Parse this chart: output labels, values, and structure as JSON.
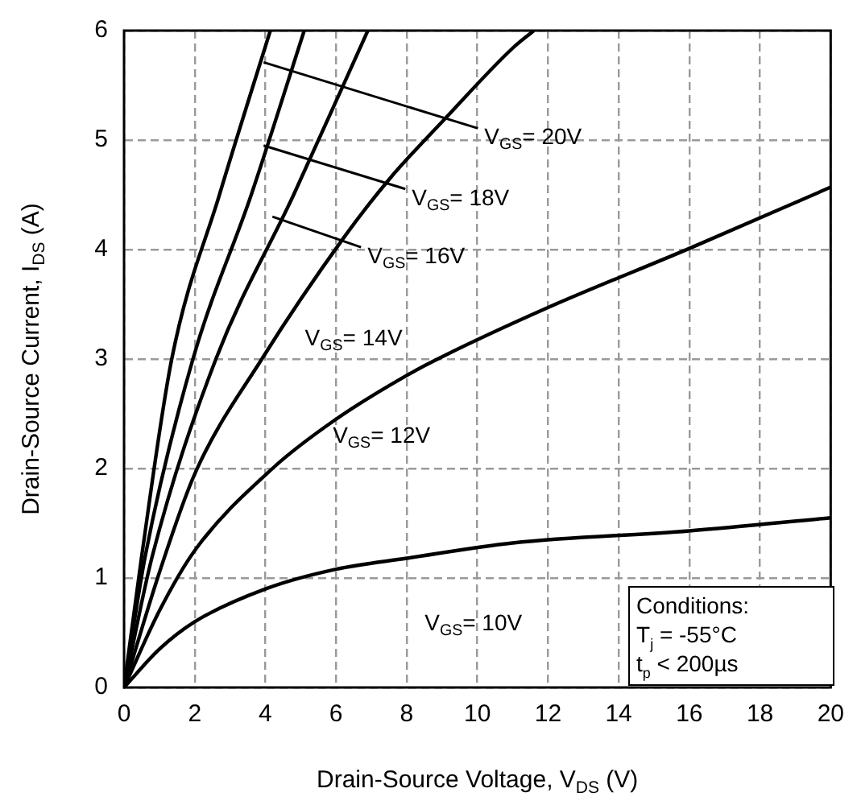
{
  "chart_data": {
    "type": "line",
    "xlabel": "Drain-Source Voltage, V$_{DS}$ (V)",
    "ylabel": "Drain-Source Current, I$_{DS}$ (A)",
    "xlim": [
      0,
      20
    ],
    "xticks": [
      0,
      2,
      4,
      6,
      8,
      10,
      12,
      14,
      16,
      18,
      20
    ],
    "ylim": [
      0,
      6
    ],
    "yticks": [
      0,
      1,
      2,
      3,
      4,
      5,
      6
    ],
    "grid": true,
    "legend": false,
    "marker": "none",
    "line_style": "solid",
    "series": [
      {
        "color": "#000000",
        "x": [
          0,
          0.5,
          1.35,
          2.7,
          4.14
        ],
        "values": [
          0,
          1.2,
          3,
          4.5,
          6
        ]
      },
      {
        "color": "#000000",
        "x": [
          0,
          0.6,
          1.95,
          3.6,
          5.1
        ],
        "values": [
          0,
          1.2,
          3,
          4.5,
          6
        ]
      },
      {
        "color": "#000000",
        "x": [
          0,
          0.8,
          2.6,
          4.8,
          6.9
        ],
        "values": [
          0,
          1.2,
          3,
          4.5,
          6
        ]
      },
      {
        "color": "#000000",
        "x": [
          0,
          1,
          2,
          3.9,
          6.2,
          7.5,
          9.1,
          11,
          11.6
        ],
        "values": [
          0,
          1.05,
          1.95,
          3,
          4.1,
          4.64,
          5.2,
          5.84,
          6
        ]
      },
      {
        "color": "#000000",
        "x": [
          0,
          1,
          2,
          4.2,
          6,
          8,
          9,
          12,
          16,
          20
        ],
        "values": [
          0,
          0.7,
          1.25,
          2,
          2.45,
          2.85,
          3.02,
          3.47,
          4.01,
          4.57
        ]
      },
      {
        "color": "#000000",
        "x": [
          0,
          1,
          2,
          4,
          6,
          8,
          11,
          16,
          20
        ],
        "values": [
          0,
          0.35,
          0.6,
          0.9,
          1.08,
          1.18,
          1.32,
          1.43,
          1.55
        ]
      }
    ],
    "annotations": [
      {
        "text": "V$_{GS}$= 20V",
        "x": 3.95,
        "y": 5.71
      },
      {
        "text": "V$_{GS}$= 18V",
        "x": 3.95,
        "y": 4.95
      },
      {
        "text": "V$_{GS}$= 16V",
        "x": 4.2,
        "y": 4.3
      },
      {
        "text": "V$_{GS}$= 14V",
        "x": 4.3,
        "y": 3.3
      },
      {
        "text": "V$_{GS}$= 12V",
        "x": 6,
        "y": 2.47
      },
      {
        "text": "V$_{GS}$= 10V",
        "x": 8.6,
        "y": 1.2
      },
      "Conditions:",
      "T$_{j}$ = -55°C",
      "t$_{p}$ < 200µs"
    ]
  }
}
